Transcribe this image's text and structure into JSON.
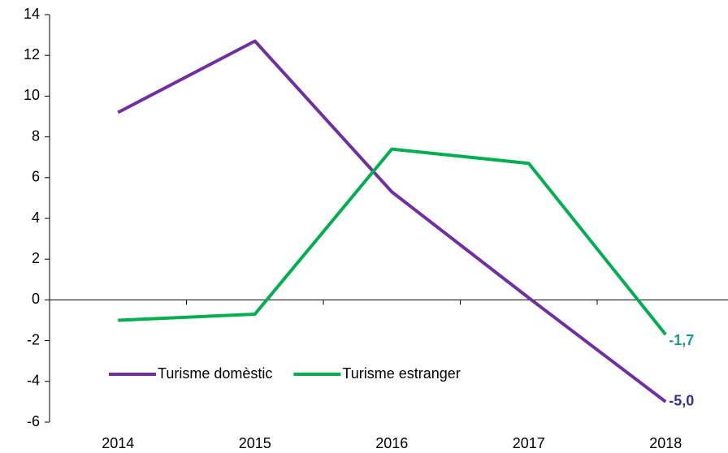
{
  "chart_data": {
    "type": "line",
    "categories": [
      "2014",
      "2015",
      "2016",
      "2017",
      "2018"
    ],
    "series": [
      {
        "name": "Turisme domèstic",
        "color": "#7030a0",
        "label_color": "#2e3192",
        "values": [
          9.2,
          12.7,
          5.3,
          0.1,
          -5.0
        ],
        "value_labels": [
          null,
          null,
          null,
          null,
          "-5,0"
        ]
      },
      {
        "name": "Turisme estranger",
        "color": "#00b050",
        "label_color": "#1a9a8a",
        "values": [
          -1.0,
          -0.7,
          7.4,
          6.7,
          -1.7
        ],
        "value_labels": [
          null,
          null,
          null,
          null,
          "-1,7"
        ]
      }
    ],
    "ylim": [
      -6,
      14
    ],
    "yticks": [
      -6,
      -4,
      -2,
      0,
      2,
      4,
      6,
      8,
      10,
      12,
      14
    ],
    "legend": "bottom-left"
  }
}
